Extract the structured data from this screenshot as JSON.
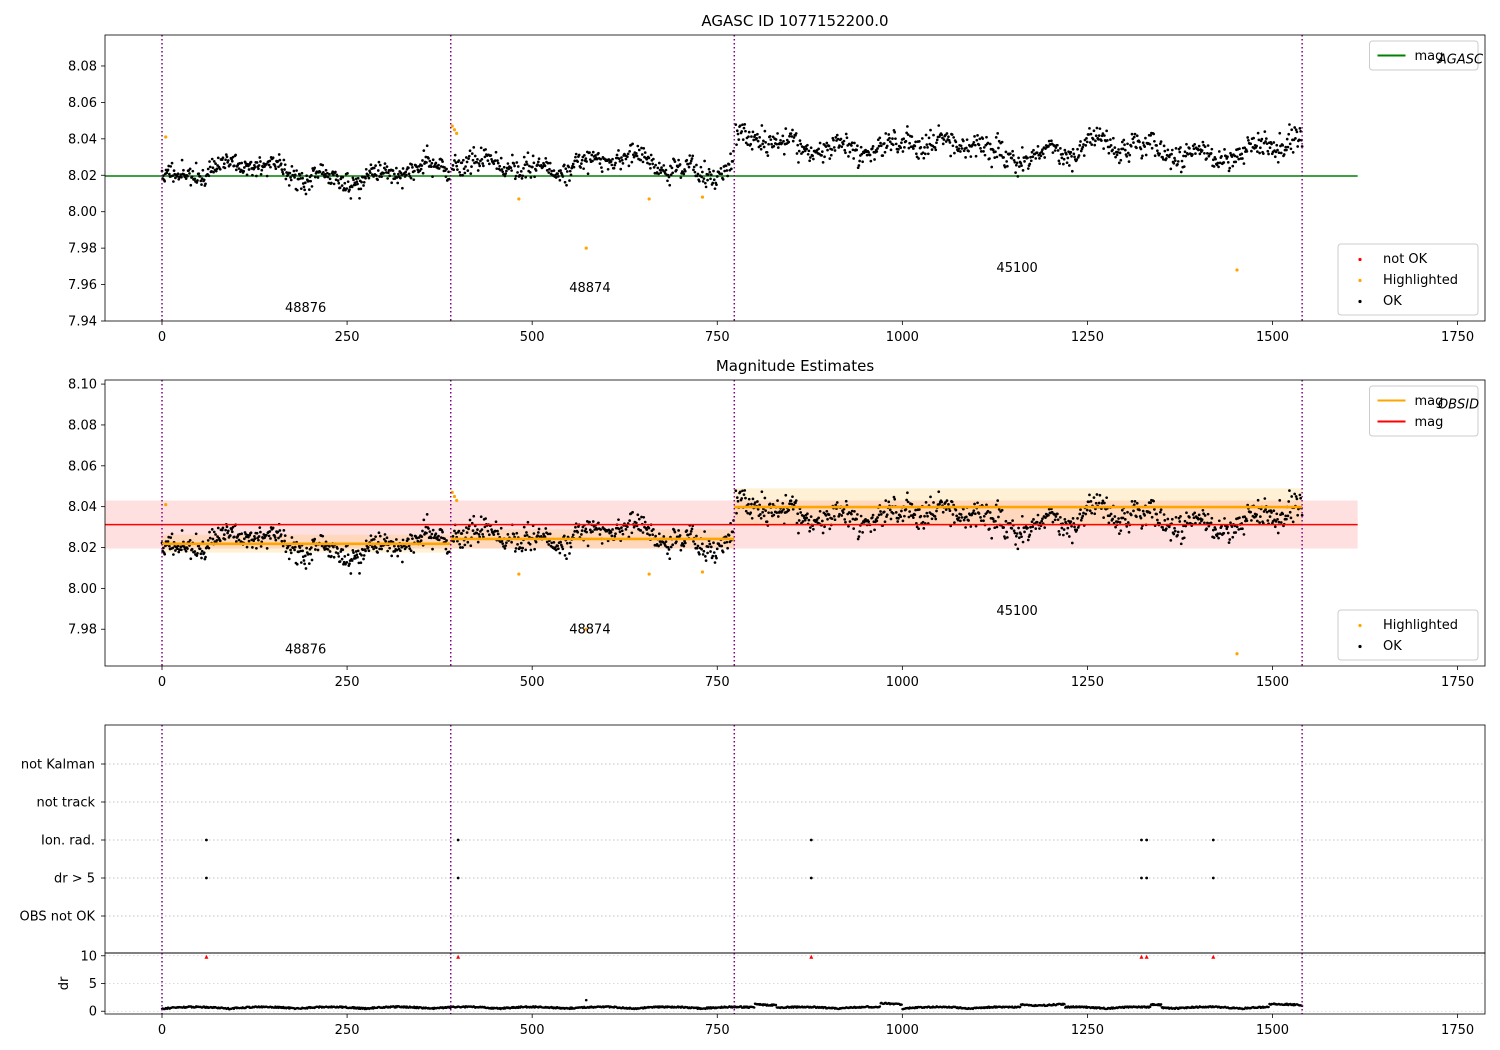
{
  "chart_data": [
    {
      "type": "scatter",
      "title": "AGASC ID 1077152200.0",
      "xlim": [
        -77,
        1787
      ],
      "ylim": [
        7.94,
        8.097
      ],
      "xticks": [
        0,
        250,
        500,
        750,
        1000,
        1250,
        1500,
        1750
      ],
      "yticks": [
        "7.94",
        "7.96",
        "7.98",
        "8.00",
        "8.02",
        "8.04",
        "8.06",
        "8.08"
      ],
      "obs_boundaries": [
        0,
        390,
        773,
        1540
      ],
      "obs_labels": [
        {
          "text": "48876",
          "x": 194,
          "y": 7.945
        },
        {
          "text": "48874",
          "x": 578,
          "y": 7.956
        },
        {
          "text": "45100",
          "x": 1155,
          "y": 7.967
        }
      ],
      "reference_lines": [
        {
          "name": "mag_AGASC",
          "y": 8.0196,
          "x_range": [
            -77,
            1615
          ],
          "color": "#008000"
        }
      ],
      "legends": [
        {
          "position": "upper right",
          "entries": [
            {
              "label": "mag",
              "sub": "AGASC",
              "kind": "line",
              "color": "#008000"
            }
          ]
        },
        {
          "position": "lower right",
          "entries": [
            {
              "label": "not OK",
              "kind": "dot",
              "color": "#ff0000"
            },
            {
              "label": "Highlighted",
              "kind": "dot",
              "color": "#ffa500"
            },
            {
              "label": "OK",
              "kind": "dot",
              "color": "#000000"
            }
          ]
        }
      ],
      "highlighted_points": [
        [
          5,
          8.041
        ],
        [
          392,
          8.047
        ],
        [
          395,
          8.045
        ],
        [
          398,
          8.043
        ],
        [
          482,
          8.007
        ],
        [
          573,
          7.98
        ],
        [
          658,
          8.007
        ],
        [
          730,
          8.008
        ],
        [
          1452,
          7.968
        ]
      ],
      "segments": [
        {
          "x_start": 0,
          "x_end": 388,
          "n": 430,
          "base_start": 8.023,
          "base_end": 8.02,
          "noise": 0.006,
          "seed": 11
        },
        {
          "x_start": 392,
          "x_end": 772,
          "n": 380,
          "base_start": 8.026,
          "base_end": 8.025,
          "noise": 0.006,
          "seed": 23
        },
        {
          "x_start": 775,
          "x_end": 1540,
          "n": 760,
          "base_start": 8.037,
          "base_end": 8.033,
          "noise": 0.007,
          "seed": 37
        }
      ],
      "colors": {
        "boundary": "#800080",
        "ok": "#000000",
        "highlighted": "#ffa500",
        "not_ok": "#ff0000"
      }
    },
    {
      "type": "scatter",
      "title": "Magnitude Estimates",
      "xlim": [
        -77,
        1787
      ],
      "ylim": [
        7.962,
        8.102
      ],
      "xticks": [
        0,
        250,
        500,
        750,
        1000,
        1250,
        1500,
        1750
      ],
      "yticks": [
        "7.98",
        "8.00",
        "8.02",
        "8.04",
        "8.06",
        "8.08",
        "8.10"
      ],
      "obs_boundaries": [
        0,
        390,
        773,
        1540
      ],
      "obs_labels": [
        {
          "text": "48876",
          "x": 194,
          "y": 7.968
        },
        {
          "text": "48874",
          "x": 578,
          "y": 7.978
        },
        {
          "text": "45100",
          "x": 1155,
          "y": 7.987
        }
      ],
      "mag": {
        "value": 8.0312,
        "band": [
          8.0195,
          8.043
        ],
        "x_range": [
          -77,
          1615
        ],
        "color": "#ff0000",
        "band_color": "rgba(255,0,0,0.12)"
      },
      "mag_obsid": [
        {
          "x_range": [
            0,
            390
          ],
          "value": 8.0218,
          "band": [
            8.0175,
            8.0262
          ]
        },
        {
          "x_range": [
            390,
            773
          ],
          "value": 8.0242,
          "band": [
            8.0195,
            8.0289
          ]
        },
        {
          "x_range": [
            773,
            1540
          ],
          "value": 8.0398,
          "band": [
            8.0305,
            8.049
          ]
        }
      ],
      "obsid_color": "#ffa500",
      "legends": [
        {
          "position": "upper right",
          "entries": [
            {
              "label": "mag",
              "sub": "OBSID",
              "kind": "line",
              "color": "#ffa500"
            },
            {
              "label": "mag",
              "kind": "line",
              "color": "#ff0000"
            }
          ]
        },
        {
          "position": "lower right",
          "entries": [
            {
              "label": "Highlighted",
              "kind": "dot",
              "color": "#ffa500"
            },
            {
              "label": "OK",
              "kind": "dot",
              "color": "#000000"
            }
          ]
        }
      ],
      "highlighted_points": [
        [
          5,
          8.041
        ],
        [
          392,
          8.047
        ],
        [
          395,
          8.045
        ],
        [
          398,
          8.043
        ],
        [
          482,
          8.007
        ],
        [
          573,
          7.98
        ],
        [
          658,
          8.007
        ],
        [
          730,
          8.008
        ],
        [
          1452,
          7.968
        ]
      ],
      "segments": [
        {
          "x_start": 0,
          "x_end": 388,
          "n": 430,
          "base_start": 8.023,
          "base_end": 8.02,
          "noise": 0.006,
          "seed": 11
        },
        {
          "x_start": 392,
          "x_end": 772,
          "n": 380,
          "base_start": 8.026,
          "base_end": 8.025,
          "noise": 0.006,
          "seed": 23
        },
        {
          "x_start": 775,
          "x_end": 1540,
          "n": 760,
          "base_start": 8.037,
          "base_end": 8.033,
          "noise": 0.007,
          "seed": 37
        }
      ],
      "colors": {
        "boundary": "#800080",
        "ok": "#000000",
        "highlighted": "#ffa500"
      }
    },
    {
      "type": "scatter",
      "title": "",
      "xlim": [
        -77,
        1787
      ],
      "xticks": [
        0,
        250,
        500,
        750,
        1000,
        1250,
        1500,
        1750
      ],
      "flag_categories": [
        "not Kalman",
        "not track",
        "Ion. rad.",
        "dr > 5",
        "OBS not OK"
      ],
      "flag_points": {
        "Ion. rad.": [
          60,
          400,
          877,
          1323,
          1330,
          1420
        ],
        "dr > 5": [
          60,
          400,
          877,
          1323,
          1330,
          1420
        ]
      },
      "obs_boundaries": [
        0,
        390,
        773,
        1540
      ],
      "colors": {
        "boundary": "#800080",
        "flag": "#000000",
        "grid": "#b0b0b0"
      }
    },
    {
      "type": "scatter",
      "title": "",
      "ylabel": "dr",
      "xlim": [
        -77,
        1787
      ],
      "ylim": [
        -0.5,
        10.5
      ],
      "xticks": [
        0,
        250,
        500,
        750,
        1000,
        1250,
        1500,
        1750
      ],
      "yticks": [
        "0",
        "5",
        "10"
      ],
      "obs_boundaries": [
        0,
        390,
        773,
        1540
      ],
      "capped_points": [
        60,
        400,
        877,
        1323,
        1330,
        1420
      ],
      "outliers": [
        [
          573,
          2.0
        ]
      ],
      "colors": {
        "boundary": "#800080",
        "points": "#000000",
        "capped": "#ff0000"
      }
    }
  ]
}
